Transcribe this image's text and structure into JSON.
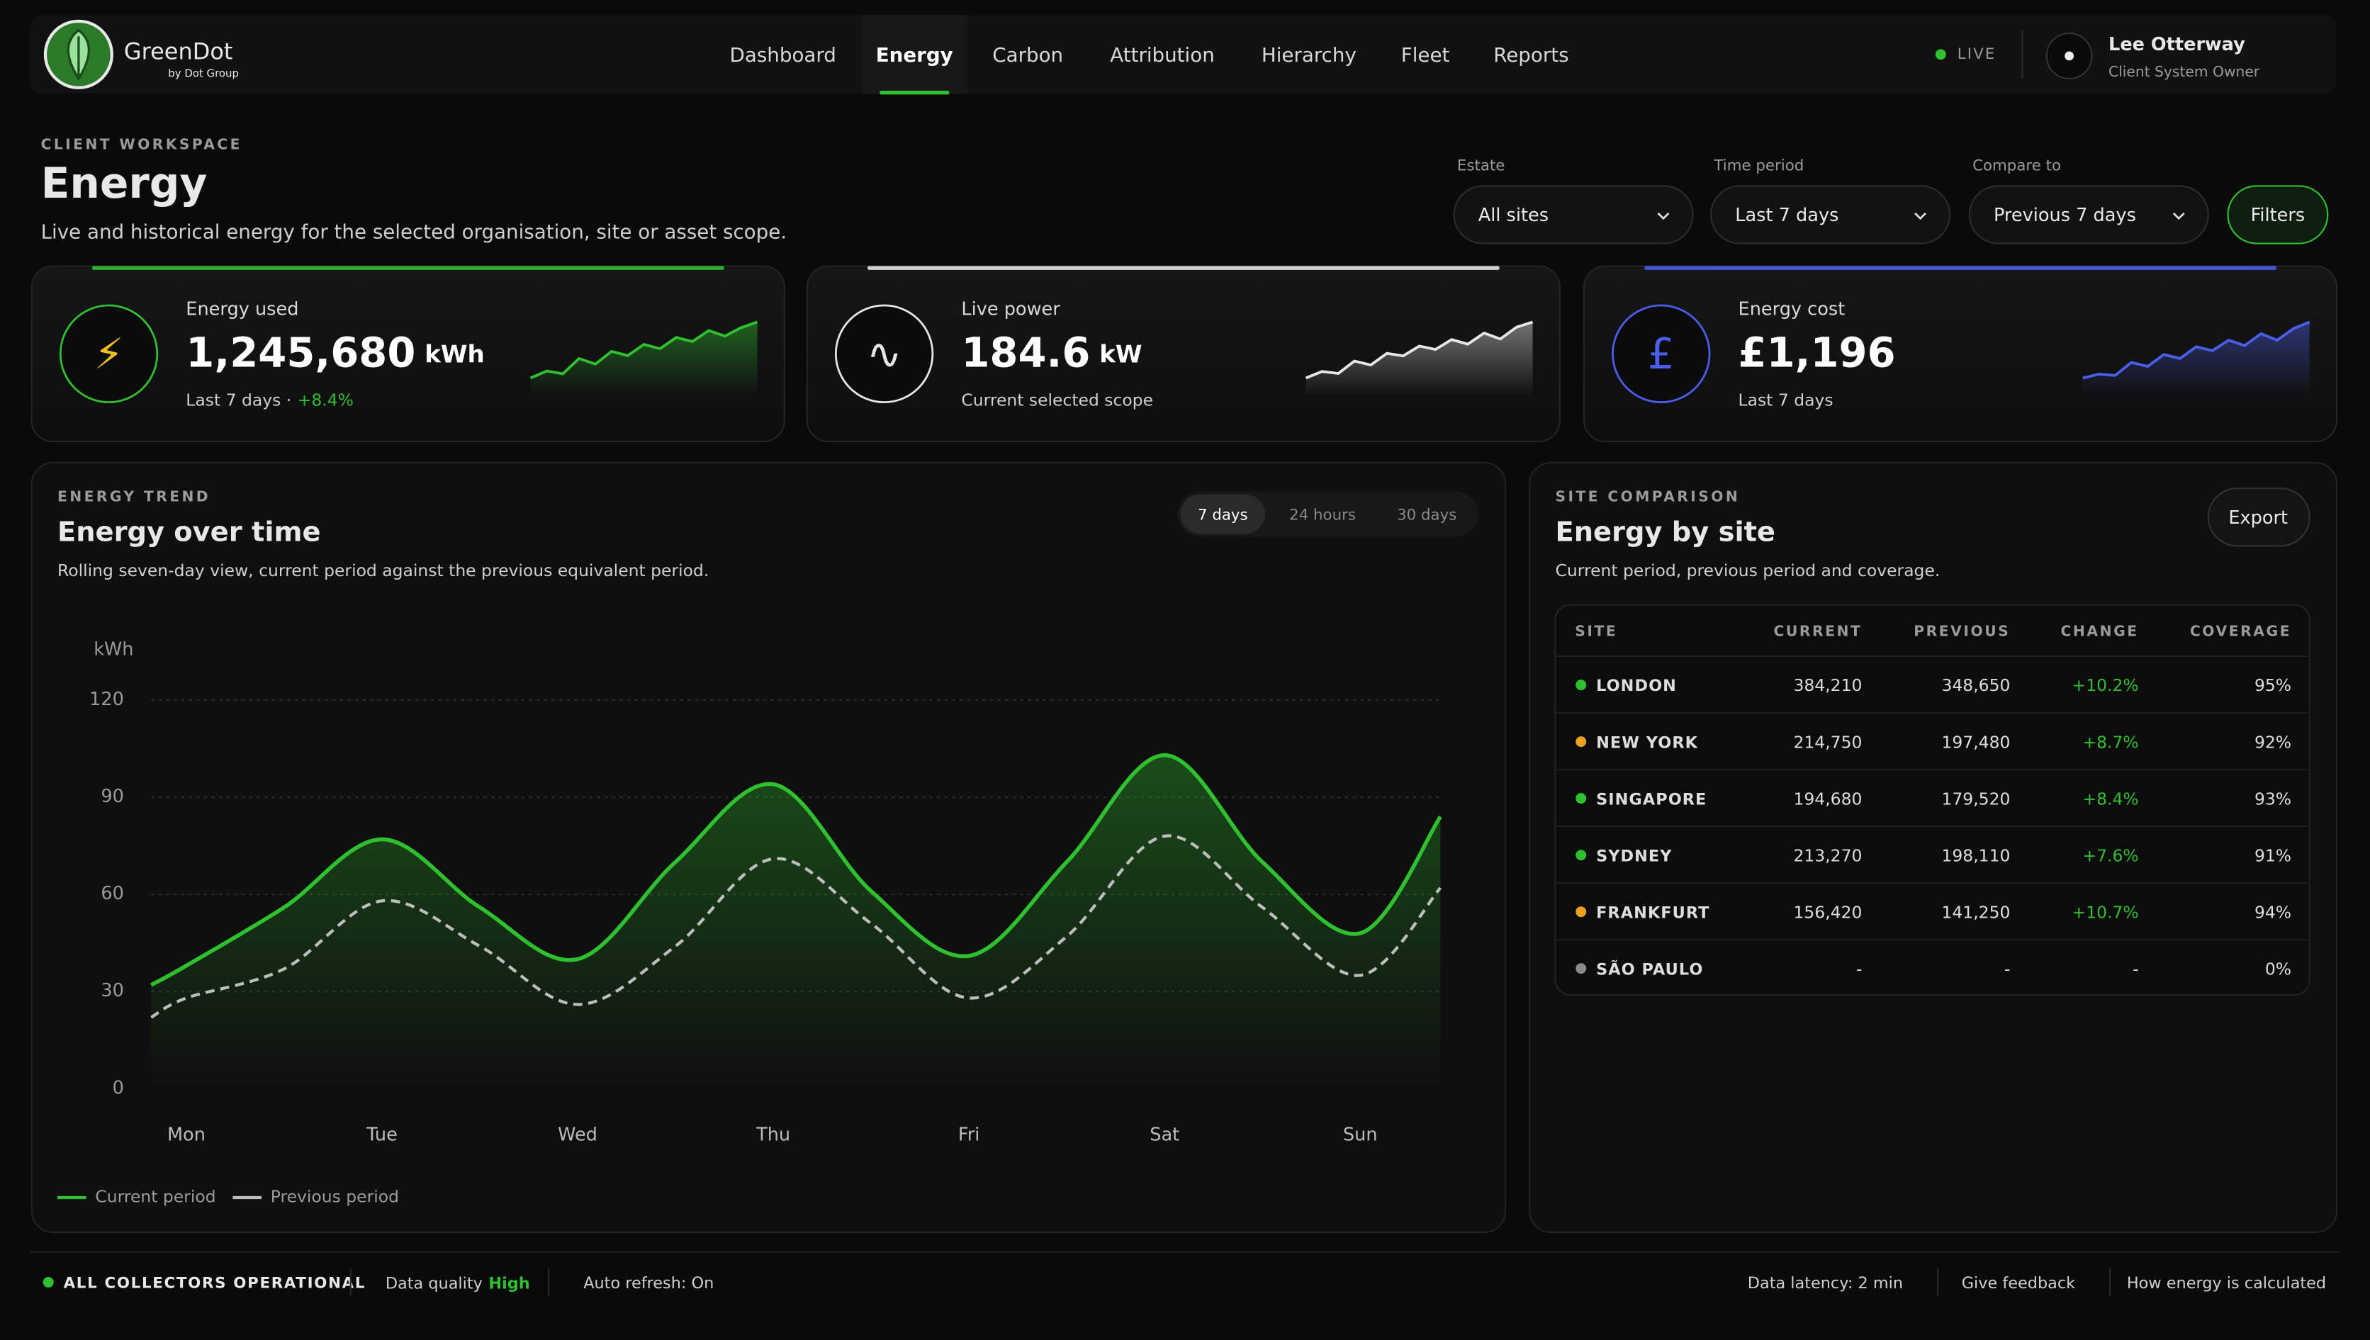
{
  "header": {
    "brand": "GreenDot",
    "brand_sub": "by Dot Group",
    "nav": [
      "Dashboard",
      "Energy",
      "Carbon",
      "Attribution",
      "Hierarchy",
      "Fleet",
      "Reports"
    ],
    "active_nav": 1,
    "live": "LIVE",
    "user_name": "Lee Otterway",
    "user_role": "Client System Owner"
  },
  "page": {
    "eyebrow": "CLIENT WORKSPACE",
    "title": "Energy",
    "subtitle": "Live and historical energy for the selected organisation, site or asset scope."
  },
  "filters": {
    "items": [
      {
        "label": "Estate",
        "value": "All sites"
      },
      {
        "label": "Time period",
        "value": "Last 7 days"
      },
      {
        "label": "Compare to",
        "value": "Previous 7 days"
      }
    ],
    "button": "Filters"
  },
  "kpis": [
    {
      "icon": "⚡",
      "label": "Energy used",
      "value": "1,245,680",
      "unit": "kWh",
      "note": "Last 7 days ·",
      "change": "+8.4%",
      "color": "#2fc02f",
      "spark": [
        3,
        4,
        3.6,
        5.8,
        5,
        6.8,
        6.2,
        7.8,
        7.2,
        8.8,
        8.2,
        9.8,
        9,
        10.2,
        11
      ]
    },
    {
      "icon": "∿",
      "label": "Live power",
      "value": "184.6",
      "unit": "kW",
      "note": "Current selected scope",
      "color": "#e6e6e6",
      "spark": [
        2,
        3,
        2.7,
        4.6,
        4,
        5.8,
        5.4,
        6.9,
        6.4,
        7.9,
        7.2,
        8.9,
        8,
        9.8,
        10.6
      ]
    },
    {
      "icon": "£",
      "label": "Energy cost",
      "value": "£1,196",
      "note": "Last 7 days",
      "color": "#4a5ee8",
      "spark": [
        2,
        2.6,
        2.4,
        4.4,
        3.8,
        5.6,
        5,
        6.8,
        6.2,
        7.8,
        7,
        8.8,
        7.8,
        9.6,
        10.6
      ]
    }
  ],
  "trend": {
    "eyebrow": "ENERGY TREND",
    "title": "Energy over time",
    "subtitle": "Rolling seven-day view, current period against the previous equivalent period.",
    "tabs": [
      "7 days",
      "24 hours",
      "30 days"
    ],
    "active_tab": 0
  },
  "chart_data": {
    "type": "line",
    "y_label": "kWh",
    "x": [
      -0.18,
      0,
      0.5,
      1,
      1.5,
      2,
      2.5,
      3,
      3.5,
      4,
      4.5,
      5,
      5.5,
      6,
      6.41
    ],
    "xlim": [
      -0.18,
      6.41
    ],
    "xticks": [
      {
        "value": 0,
        "label": "Mon"
      },
      {
        "value": 1,
        "label": "Tue"
      },
      {
        "value": 2,
        "label": "Wed"
      },
      {
        "value": 3,
        "label": "Thu"
      },
      {
        "value": 4,
        "label": "Fri"
      },
      {
        "value": 5,
        "label": "Sat"
      },
      {
        "value": 6,
        "label": "Sun"
      }
    ],
    "ylim": [
      0,
      120
    ],
    "yticks": [
      0,
      30,
      60,
      90,
      120
    ],
    "grid": true,
    "series": [
      {
        "name": "Current period",
        "color": "#2fc02f",
        "style": "solid",
        "fill": true,
        "values": [
          32,
          38,
          56,
          77,
          56,
          40,
          70,
          94,
          61,
          41,
          70,
          103,
          70,
          48,
          84
        ]
      },
      {
        "name": "Previous period",
        "color": "#bdbdbd",
        "style": "dashed",
        "fill": false,
        "values": [
          22,
          28,
          37,
          58,
          44,
          26,
          44,
          71,
          51,
          28,
          47,
          78,
          56,
          35,
          62
        ]
      }
    ]
  },
  "sites": {
    "eyebrow": "SITE COMPARISON",
    "title": "Energy by site",
    "subtitle": "Current period, previous period and coverage.",
    "export": "Export",
    "columns": [
      "SITE",
      "CURRENT",
      "PREVIOUS",
      "CHANGE",
      "COVERAGE"
    ],
    "rows": [
      [
        "LONDON",
        "384,210",
        "348,650",
        "+10.2%",
        "95%"
      ],
      [
        "NEW YORK",
        "214,750",
        "197,480",
        "+8.7%",
        "92%"
      ],
      [
        "SINGAPORE",
        "194,680",
        "179,520",
        "+8.4%",
        "93%"
      ],
      [
        "SYDNEY",
        "213,270",
        "198,110",
        "+7.6%",
        "91%"
      ],
      [
        "FRANKFURT",
        "156,420",
        "141,250",
        "+10.7%",
        "94%"
      ],
      [
        "SÃO PAULO",
        "-",
        "-",
        "-",
        "0%"
      ]
    ],
    "row_status": [
      "#2fc02f",
      "#f0a020",
      "#2fc02f",
      "#2fc02f",
      "#f0a020",
      "#8a8a8a"
    ]
  },
  "footer": {
    "status": "ALL COLLECTORS OPERATIONAL",
    "quality_label": "Data quality",
    "quality_value": "High",
    "refresh": "Auto refresh: On",
    "latency": "Data latency: 2 min",
    "links": [
      "Give feedback",
      "How energy is calculated"
    ]
  }
}
